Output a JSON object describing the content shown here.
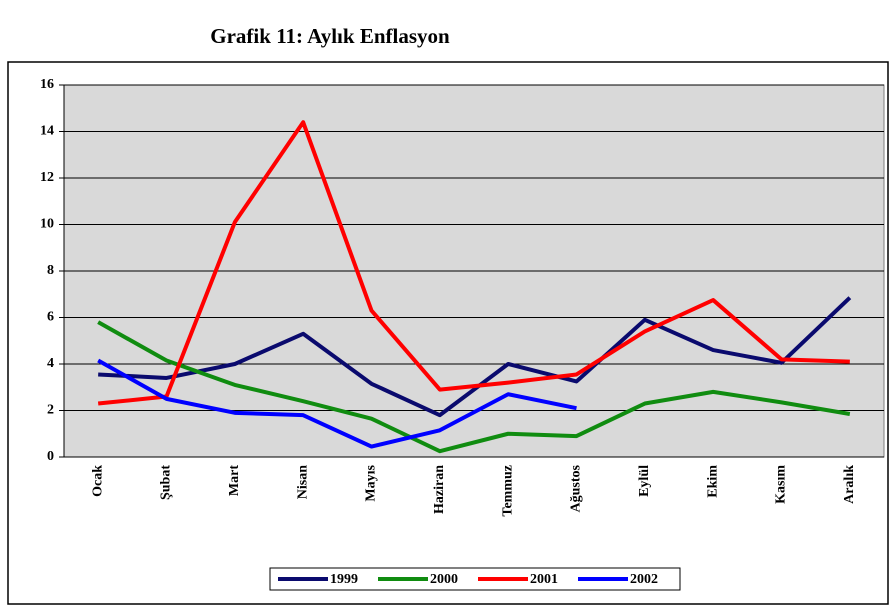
{
  "chart_data": {
    "type": "line",
    "title": "Grafik 11: Aylık Enflasyon",
    "categories": [
      "Ocak",
      "Şubat",
      "Mart",
      "Nisan",
      "Mayıs",
      "Haziran",
      "Temmuz",
      "Ağustos",
      "Eylül",
      "Ekim",
      "Kasım",
      "Aralık"
    ],
    "series": [
      {
        "name": "1999",
        "color": "#0a0a6e",
        "values": [
          3.55,
          3.4,
          4.0,
          5.3,
          3.15,
          1.8,
          4.0,
          3.25,
          5.9,
          4.6,
          4.05,
          6.85
        ]
      },
      {
        "name": "2000",
        "color": "#108c10",
        "values": [
          5.8,
          4.15,
          3.1,
          2.4,
          1.65,
          0.25,
          1.0,
          0.9,
          2.3,
          2.8,
          2.35,
          1.85
        ]
      },
      {
        "name": "2001",
        "color": "#ff0000",
        "values": [
          2.3,
          2.6,
          10.1,
          14.4,
          6.3,
          2.9,
          3.2,
          3.55,
          5.4,
          6.75,
          4.2,
          4.1
        ]
      },
      {
        "name": "2002",
        "color": "#0000ff",
        "values": [
          4.15,
          2.5,
          1.9,
          1.8,
          0.45,
          1.15,
          2.7,
          2.1,
          null,
          null,
          null,
          null
        ]
      }
    ],
    "ylim": [
      0,
      16
    ],
    "yticks": [
      0,
      2,
      4,
      6,
      8,
      10,
      12,
      14,
      16
    ],
    "grid": true,
    "legend": "bottom"
  }
}
